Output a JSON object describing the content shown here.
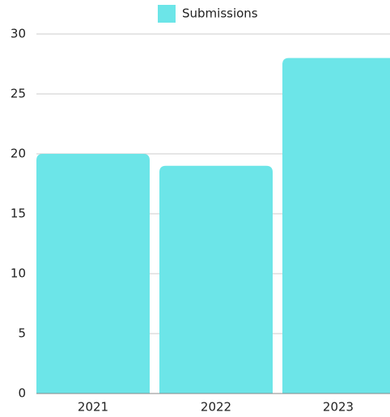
{
  "chart_data": {
    "type": "bar",
    "legend": "Submissions",
    "categories": [
      "2021",
      "2022",
      "2023"
    ],
    "values": [
      20,
      19,
      28
    ],
    "color": "#6ce5e8",
    "ylim": [
      0,
      30
    ],
    "yticks": [
      0,
      5,
      10,
      15,
      20,
      25,
      30
    ],
    "grid": true
  }
}
